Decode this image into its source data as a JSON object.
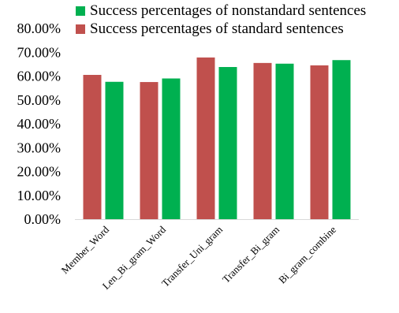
{
  "chart_data": {
    "type": "bar",
    "categories": [
      "Member_Word",
      "Len_Bi_gram_Word",
      "Transfer_Uni_gram",
      "Transfer_Bi_gram",
      "Bi_gram_combine"
    ],
    "series": [
      {
        "name": "Success percentages of standard sentences",
        "color": "#c0504d",
        "values": [
          60.5,
          57.5,
          67.8,
          65.5,
          64.5
        ]
      },
      {
        "name": "Success percentages of nonstandard sentences",
        "color": "#00b050",
        "values": [
          57.6,
          59.0,
          63.8,
          65.2,
          66.7
        ]
      }
    ],
    "legend_order": [
      1,
      0
    ],
    "legend_position": "top",
    "y_ticks": [
      "0.00%",
      "10.00%",
      "20.00%",
      "30.00%",
      "40.00%",
      "50.00%",
      "60.00%",
      "70.00%",
      "80.00%"
    ],
    "ylim": [
      0,
      80
    ],
    "grid": false
  }
}
